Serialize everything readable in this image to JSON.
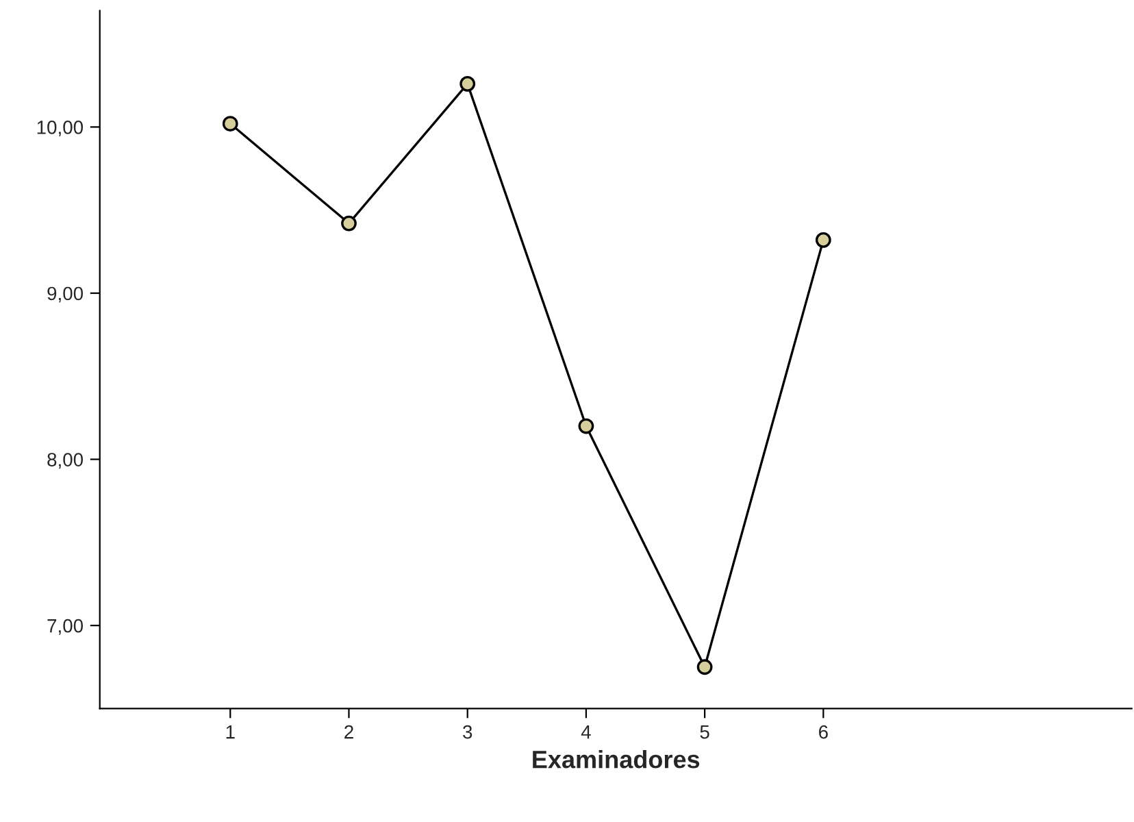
{
  "chart_data": {
    "type": "line",
    "xlabel": "Examinadores",
    "x": [
      1,
      2,
      3,
      4,
      5,
      6
    ],
    "series": [
      {
        "color": "#000000",
        "values": [
          10.02,
          9.42,
          10.26,
          8.2,
          6.75,
          9.32
        ]
      }
    ],
    "marker": "circle",
    "line_style": "solid",
    "xlim": [
      -0.1,
      8.6
    ],
    "xticks": [
      1,
      2,
      3,
      4,
      5,
      6
    ],
    "ylim": [
      6.5,
      10.7
    ],
    "yticks": [
      {
        "value": 7,
        "label": "7,00"
      },
      {
        "value": 8,
        "label": "8,00"
      },
      {
        "value": 9,
        "label": "9,00"
      },
      {
        "value": 10,
        "label": "10,00"
      }
    ],
    "grid": false,
    "legend": false
  }
}
